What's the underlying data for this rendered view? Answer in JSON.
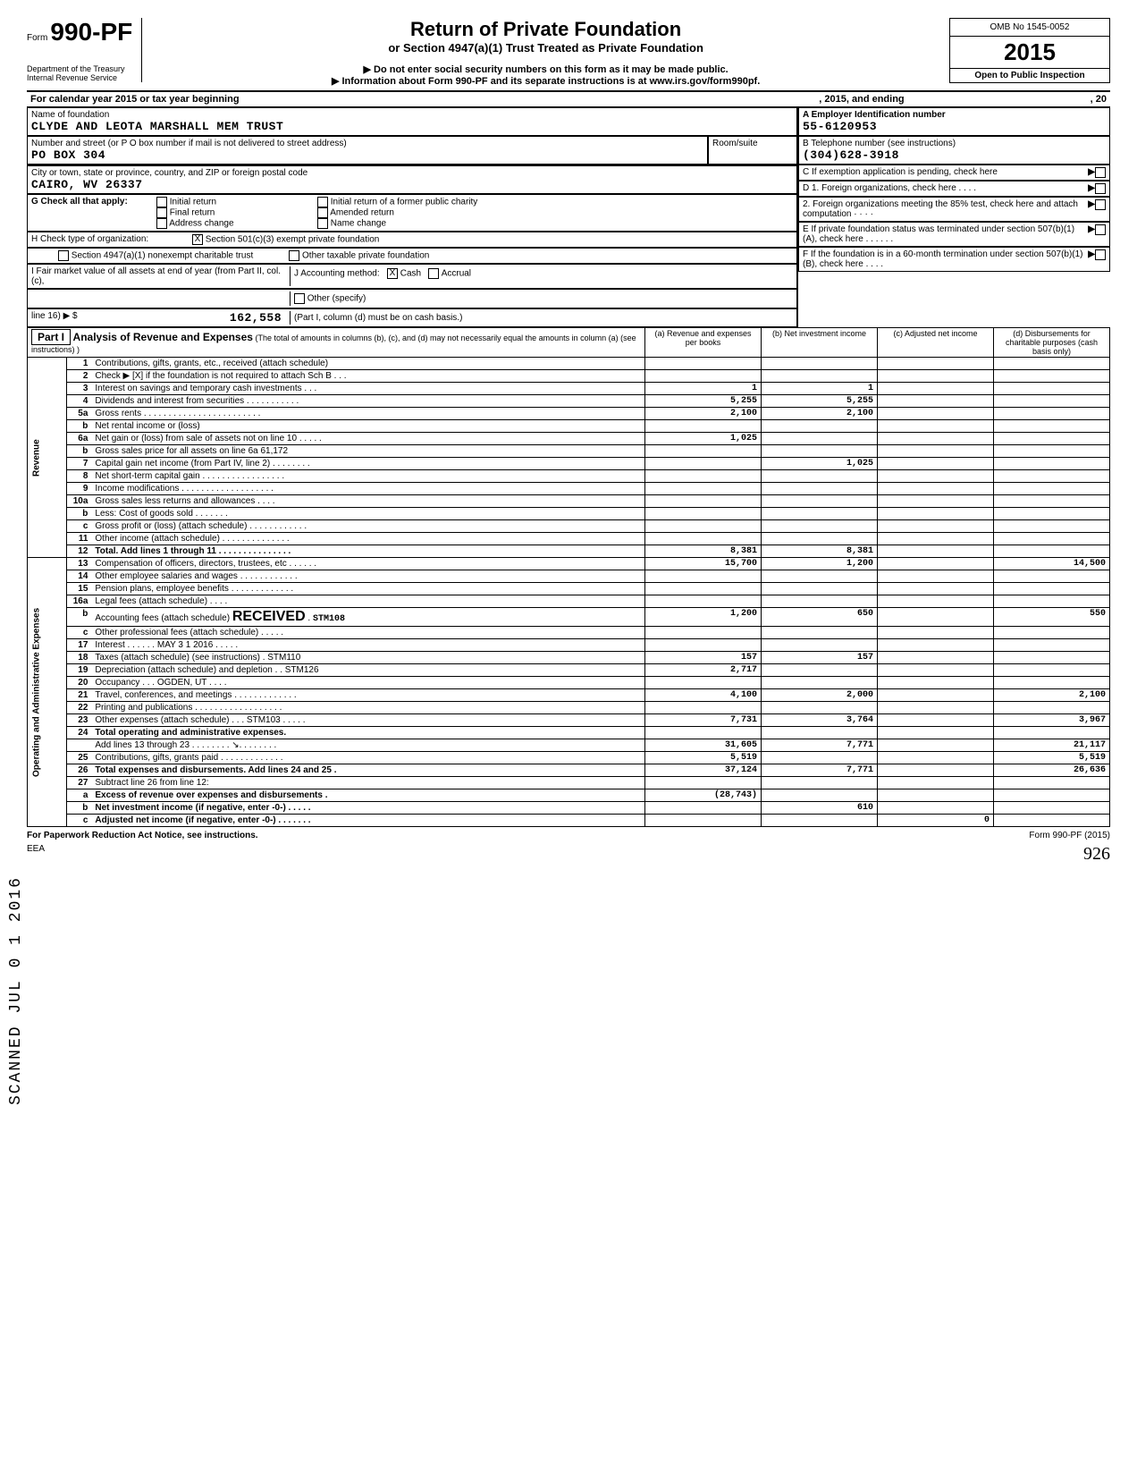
{
  "form": {
    "word": "Form",
    "number": "990-PF",
    "dept1": "Department of the Treasury",
    "dept2": "Internal Revenue Service",
    "title": "Return of Private Foundation",
    "subtitle": "or Section 4947(a)(1) Trust Treated as Private Foundation",
    "instr1": "▶ Do not enter social security numbers on this form as it may be made public.",
    "instr2": "▶ Information about Form 990-PF and its separate instructions is at www.irs.gov/form990pf.",
    "omb": "OMB No 1545-0052",
    "year": "2015",
    "open": "Open to Public Inspection"
  },
  "cal": {
    "line": "For calendar year 2015 or tax year beginning",
    "mid": ", 2015, and ending",
    "end": ", 20"
  },
  "entity": {
    "name_label": "Name of foundation",
    "name": "CLYDE AND LEOTA MARSHALL MEM TRUST",
    "addr_label": "Number and street (or P O  box number if mail is not delivered to street address)",
    "addr": "PO BOX 304",
    "room_label": "Room/suite",
    "city_label": "City or town, state or province, country, and ZIP or foreign postal code",
    "city": "CAIRO, WV 26337",
    "ein_label": "A Employer Identification number",
    "ein": "55-6120953",
    "tel_label": "B Telephone number (see instructions)",
    "tel": "(304)628-3918",
    "c": "C  If exemption application is pending, check here",
    "d1": "D  1. Foreign organizations, check here  .  .  .  .",
    "d2": "2. Foreign organizations meeting the 85% test, check here and attach computation  · · · ·",
    "e": "E  If private foundation status was terminated under section 507(b)(1)(A), check here  .  .  .  .  .  .",
    "f": "F  If the foundation is in a 60-month termination under section 507(b)(1)(B), check here .  .  .  ."
  },
  "g": {
    "label": "G  Check all that apply:",
    "opts": [
      "Initial return",
      "Final return",
      "Address change",
      "Initial return of a former public charity",
      "Amended return",
      "Name change"
    ]
  },
  "h": {
    "label": "H  Check type of organization:",
    "o1": "Section 501(c)(3) exempt private foundation",
    "o2": "Section 4947(a)(1) nonexempt charitable trust",
    "o3": "Other taxable private foundation"
  },
  "i": {
    "label": "I   Fair market value of all assets at end of year (from Part II, col. (c),",
    "line16": "line 16) ▶ $",
    "value": "162,558",
    "j": "J   Accounting method:",
    "cash": "Cash",
    "accrual": "Accrual",
    "other": "Other (specify)",
    "note": "(Part I, column (d) must be on cash basis.)"
  },
  "part1": {
    "label": "Part I",
    "title": "Analysis of Revenue and Expenses",
    "note": "(The total of amounts in columns (b), (c), and (d) may not necessarily equal the amounts in column (a) (see instructions) )",
    "cols": {
      "a": "(a) Revenue and expenses per books",
      "b": "(b) Net investment income",
      "c": "(c) Adjusted net income",
      "d": "(d) Disbursements for charitable purposes (cash basis only)"
    }
  },
  "side": {
    "rev": "Revenue",
    "exp": "Operating and Administrative Expenses",
    "stamp": "SCANNED  JUL 0 1 2016"
  },
  "rows": [
    {
      "n": "1",
      "d": "Contributions, gifts, grants, etc., received (attach schedule)",
      "a": "",
      "b": "",
      "c": "",
      "e": ""
    },
    {
      "n": "2",
      "d": "Check ▶  [X]  if the foundation is not  required to attach Sch  B    .  .  .",
      "a": "",
      "b": "",
      "c": "",
      "e": ""
    },
    {
      "n": "3",
      "d": "Interest on savings and temporary cash investments   .  .  .",
      "a": "1",
      "b": "1",
      "c": "",
      "e": ""
    },
    {
      "n": "4",
      "d": "Dividends and interest from securities   .  .  .  .  .  .  .  .  .  .  .",
      "a": "5,255",
      "b": "5,255",
      "c": "",
      "e": ""
    },
    {
      "n": "5a",
      "d": "Gross rents  .  .  .  .  .  .  .  .  .  .  .  .  .  .  .  .  .  .  .  .  .  .  .  .",
      "a": "2,100",
      "b": "2,100",
      "c": "",
      "e": ""
    },
    {
      "n": "b",
      "d": "Net rental income or (loss)",
      "a": "",
      "b": "",
      "c": "",
      "e": ""
    },
    {
      "n": "6a",
      "d": "Net gain or (loss) from sale of assets not on line 10  .  .  .  .  .",
      "a": "1,025",
      "b": "",
      "c": "",
      "e": ""
    },
    {
      "n": "b",
      "d": "Gross sales price for all assets on line 6a                         61,172",
      "a": "",
      "b": "",
      "c": "",
      "e": ""
    },
    {
      "n": "7",
      "d": "Capital gain net income (from Part IV, line 2)   .  .  .  .  .  .  .  .",
      "a": "",
      "b": "1,025",
      "c": "",
      "e": ""
    },
    {
      "n": "8",
      "d": "Net short-term capital gain     .  .  .  .  .  .  .  .  .  .  .  .  .  .  .  .  .",
      "a": "",
      "b": "",
      "c": "",
      "e": ""
    },
    {
      "n": "9",
      "d": "Income modifications    .  .  .  .  .  .  .  .  .  .  .  .  .  .  .  .  .  .  .",
      "a": "",
      "b": "",
      "c": "",
      "e": ""
    },
    {
      "n": "10a",
      "d": "Gross sales less returns and allowances     .  .  .  .",
      "a": "",
      "b": "",
      "c": "",
      "e": ""
    },
    {
      "n": "b",
      "d": "Less: Cost of goods sold .  .  .  .  .  .  .",
      "a": "",
      "b": "",
      "c": "",
      "e": ""
    },
    {
      "n": "c",
      "d": "Gross profit or (loss) (attach schedule)  .  .  .  .  .  .  .  .  .  .  .  .",
      "a": "",
      "b": "",
      "c": "",
      "e": ""
    },
    {
      "n": "11",
      "d": "Other income (attach schedule)   .  .  .  .  .  .  .  .  .  .  .  .  .  .",
      "a": "",
      "b": "",
      "c": "",
      "e": ""
    },
    {
      "n": "12",
      "d": "Total. Add lines 1 through 11    .  .  .  .  .  .  .  .  .  .  .  .  .  .  .",
      "a": "8,381",
      "b": "8,381",
      "c": "",
      "e": "",
      "bold": true
    },
    {
      "n": "13",
      "d": "Compensation of officers, directors, trustees, etc  .  .  .  .  .  .",
      "a": "15,700",
      "b": "1,200",
      "c": "",
      "e": "14,500"
    },
    {
      "n": "14",
      "d": "Other employee salaries and wages   .  .  .  .  .  .  .  .  .  .  .  .",
      "a": "",
      "b": "",
      "c": "",
      "e": ""
    },
    {
      "n": "15",
      "d": "Pension plans, employee benefits    .  .  .  .  .  .  .  .  .  .  .  .  .",
      "a": "",
      "b": "",
      "c": "",
      "e": ""
    },
    {
      "n": "16a",
      "d": "Legal fees (attach schedule)               .  .  .  .",
      "a": "",
      "b": "",
      "c": "",
      "e": ""
    },
    {
      "n": "b",
      "d": "Accounting fees (attach schedule) . . . .  STM108",
      "a": "1,200",
      "b": "650",
      "c": "",
      "e": "550",
      "stamp": "RECEIVED"
    },
    {
      "n": "c",
      "d": "Other professional fees (attach schedule)    .  .  .  .  .",
      "a": "",
      "b": "",
      "c": "",
      "e": ""
    },
    {
      "n": "17",
      "d": "Interest  .  .  .  .  .  .  MAY 3 1 2016  .  .  .  .  .",
      "a": "",
      "b": "",
      "c": "",
      "e": ""
    },
    {
      "n": "18",
      "d": "Taxes (attach schedule) (see instructions)    . STM110",
      "a": "157",
      "b": "157",
      "c": "",
      "e": ""
    },
    {
      "n": "19",
      "d": "Depreciation (attach schedule) and depletion .  . STM126",
      "a": "2,717",
      "b": "",
      "c": "",
      "e": ""
    },
    {
      "n": "20",
      "d": "Occupancy  .  .  .   OGDEN, UT    .  .  .  .",
      "a": "",
      "b": "",
      "c": "",
      "e": ""
    },
    {
      "n": "21",
      "d": "Travel, conferences, and meetings .  .  .  .  .  .  .  .  .  .  .  .  .",
      "a": "4,100",
      "b": "2,000",
      "c": "",
      "e": "2,100"
    },
    {
      "n": "22",
      "d": "Printing and publications .  .  .  .  .  .  .  .  .  .  .  .  .  .  .  .  .  .",
      "a": "",
      "b": "",
      "c": "",
      "e": ""
    },
    {
      "n": "23",
      "d": "Other expenses (attach schedule)  .  .  . STM103 .  .  .  .  .",
      "a": "7,731",
      "b": "3,764",
      "c": "",
      "e": "3,967"
    },
    {
      "n": "24",
      "d": "Total operating and administrative expenses.",
      "a": "",
      "b": "",
      "c": "",
      "e": "",
      "bold": true
    },
    {
      "n": "",
      "d": "Add lines 13 through 23   .  .  .  .  .  .  .  .  ↘.  .  .  .  .  .  .  .",
      "a": "31,605",
      "b": "7,771",
      "c": "",
      "e": "21,117"
    },
    {
      "n": "25",
      "d": "Contributions, gifts, grants paid      .  .  .  .  .  .  .  .  .  .  .  .  .",
      "a": "5,519",
      "b": "",
      "c": "",
      "e": "5,519"
    },
    {
      "n": "26",
      "d": "Total expenses and disbursements. Add lines 24 and 25   .",
      "a": "37,124",
      "b": "7,771",
      "c": "",
      "e": "26,636",
      "bold": true
    },
    {
      "n": "27",
      "d": "Subtract line 26 from line 12:",
      "a": "",
      "b": "",
      "c": "",
      "e": ""
    },
    {
      "n": "a",
      "d": "Excess of revenue over expenses and disbursements    .",
      "a": "(28,743)",
      "b": "",
      "c": "",
      "e": "",
      "bold": true
    },
    {
      "n": "b",
      "d": "Net investment income (if negative, enter -0-)   .  .  .  .  .",
      "a": "",
      "b": "610",
      "c": "",
      "e": "",
      "bold": true
    },
    {
      "n": "c",
      "d": "Adjusted net income (if negative, enter -0-)    .  .  .  .  .  .  .",
      "a": "",
      "b": "",
      "c": "0",
      "e": "",
      "bold": true
    }
  ],
  "footer": {
    "left": "For Paperwork Reduction Act Notice, see instructions.",
    "eea": "EEA",
    "right": "Form 990-PF (2015)",
    "hand": "926"
  }
}
